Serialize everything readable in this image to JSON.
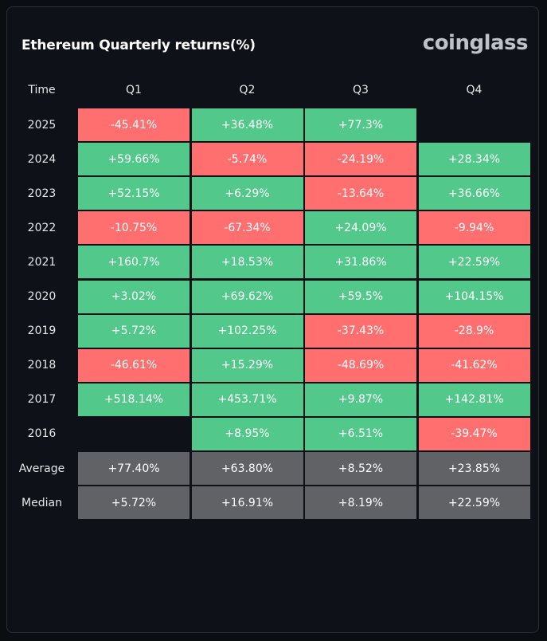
{
  "title": "Ethereum Quarterly returns(%)",
  "brand": "coinglass",
  "colors": {
    "positive": "#52c98a",
    "negative": "#ff6f6f",
    "stat": "#606266",
    "background": "#0e1117"
  },
  "chart_data": {
    "type": "table",
    "title": "Ethereum Quarterly returns(%)",
    "columns": [
      "Time",
      "Q1",
      "Q2",
      "Q3",
      "Q4"
    ],
    "rows": [
      {
        "label": "2025",
        "values": [
          "-45.41%",
          "+36.48%",
          "+77.3%",
          ""
        ]
      },
      {
        "label": "2024",
        "values": [
          "+59.66%",
          "-5.74%",
          "-24.19%",
          "+28.34%"
        ]
      },
      {
        "label": "2023",
        "values": [
          "+52.15%",
          "+6.29%",
          "-13.64%",
          "+36.66%"
        ]
      },
      {
        "label": "2022",
        "values": [
          "-10.75%",
          "-67.34%",
          "+24.09%",
          "-9.94%"
        ]
      },
      {
        "label": "2021",
        "values": [
          "+160.7%",
          "+18.53%",
          "+31.86%",
          "+22.59%"
        ]
      },
      {
        "label": "2020",
        "values": [
          "+3.02%",
          "+69.62%",
          "+59.5%",
          "+104.15%"
        ]
      },
      {
        "label": "2019",
        "values": [
          "+5.72%",
          "+102.25%",
          "-37.43%",
          "-28.9%"
        ]
      },
      {
        "label": "2018",
        "values": [
          "-46.61%",
          "+15.29%",
          "-48.69%",
          "-41.62%"
        ]
      },
      {
        "label": "2017",
        "values": [
          "+518.14%",
          "+453.71%",
          "+9.87%",
          "+142.81%"
        ]
      },
      {
        "label": "2016",
        "values": [
          "",
          "+8.95%",
          "+6.51%",
          "-39.47%"
        ]
      }
    ],
    "summary_rows": [
      {
        "label": "Average",
        "values": [
          "+77.40%",
          "+63.80%",
          "+8.52%",
          "+23.85%"
        ]
      },
      {
        "label": "Median",
        "values": [
          "+5.72%",
          "+16.91%",
          "+8.19%",
          "+22.59%"
        ]
      }
    ]
  }
}
